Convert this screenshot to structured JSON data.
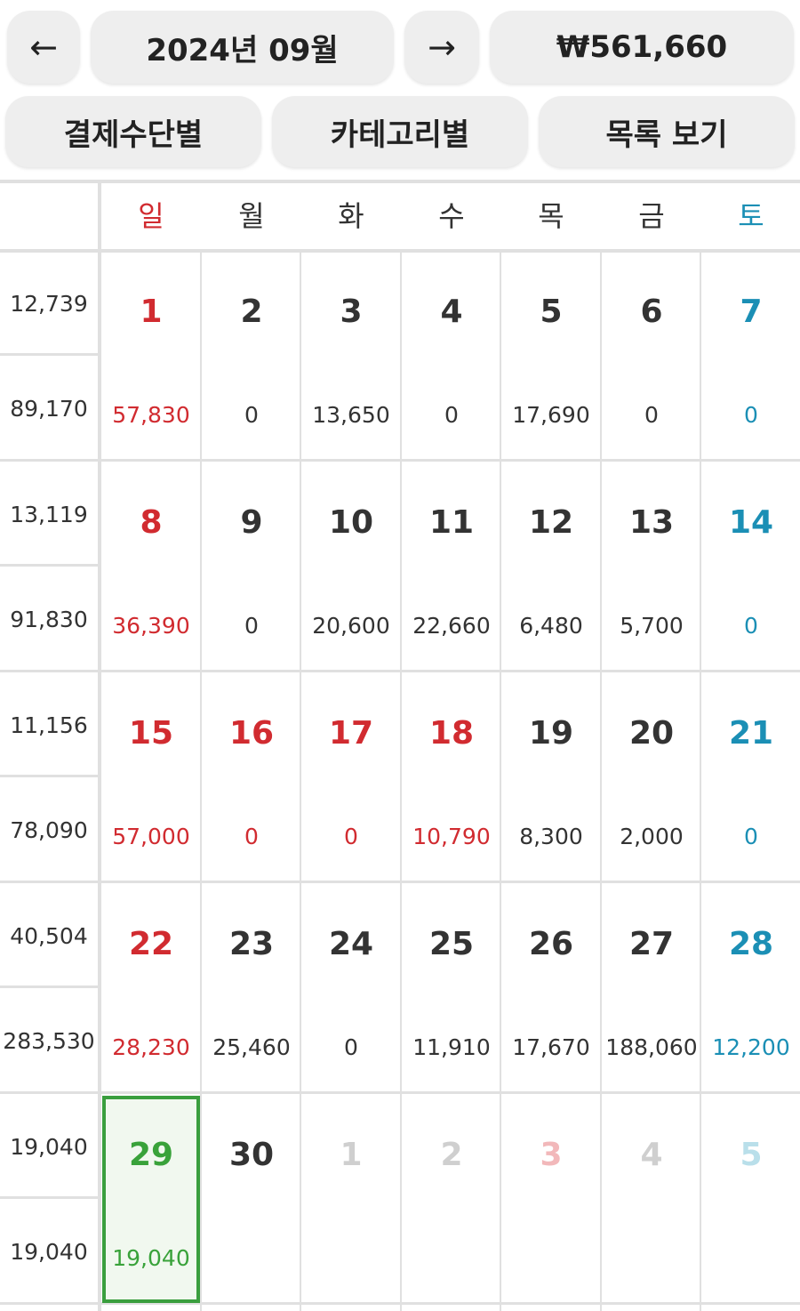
{
  "header": {
    "prev_label": "←",
    "month_label": "2024년 09월",
    "next_label": "→",
    "total_label": "₩561,660"
  },
  "view_buttons": {
    "by_payment": "결제수단별",
    "by_category": "카테고리별",
    "list_view": "목록 보기"
  },
  "weekdays": [
    "일",
    "월",
    "화",
    "수",
    "목",
    "금",
    "토"
  ],
  "weeks": [
    {
      "summary_top": "12,739",
      "summary_bottom": "89,170",
      "days": [
        {
          "day": "1",
          "amount": "57,830",
          "kind": "holiday"
        },
        {
          "day": "2",
          "amount": "0",
          "kind": "normal"
        },
        {
          "day": "3",
          "amount": "13,650",
          "kind": "normal"
        },
        {
          "day": "4",
          "amount": "0",
          "kind": "normal"
        },
        {
          "day": "5",
          "amount": "17,690",
          "kind": "normal"
        },
        {
          "day": "6",
          "amount": "0",
          "kind": "normal"
        },
        {
          "day": "7",
          "amount": "0",
          "kind": "saturday"
        }
      ]
    },
    {
      "summary_top": "13,119",
      "summary_bottom": "91,830",
      "days": [
        {
          "day": "8",
          "amount": "36,390",
          "kind": "holiday"
        },
        {
          "day": "9",
          "amount": "0",
          "kind": "normal"
        },
        {
          "day": "10",
          "amount": "20,600",
          "kind": "normal"
        },
        {
          "day": "11",
          "amount": "22,660",
          "kind": "normal"
        },
        {
          "day": "12",
          "amount": "6,480",
          "kind": "normal"
        },
        {
          "day": "13",
          "amount": "5,700",
          "kind": "normal"
        },
        {
          "day": "14",
          "amount": "0",
          "kind": "saturday"
        }
      ]
    },
    {
      "summary_top": "11,156",
      "summary_bottom": "78,090",
      "days": [
        {
          "day": "15",
          "amount": "57,000",
          "kind": "holiday"
        },
        {
          "day": "16",
          "amount": "0",
          "kind": "holiday"
        },
        {
          "day": "17",
          "amount": "0",
          "kind": "holiday"
        },
        {
          "day": "18",
          "amount": "10,790",
          "kind": "holiday"
        },
        {
          "day": "19",
          "amount": "8,300",
          "kind": "normal"
        },
        {
          "day": "20",
          "amount": "2,000",
          "kind": "normal"
        },
        {
          "day": "21",
          "amount": "0",
          "kind": "saturday"
        }
      ]
    },
    {
      "summary_top": "40,504",
      "summary_bottom": "283,530",
      "days": [
        {
          "day": "22",
          "amount": "28,230",
          "kind": "holiday"
        },
        {
          "day": "23",
          "amount": "25,460",
          "kind": "normal"
        },
        {
          "day": "24",
          "amount": "0",
          "kind": "normal"
        },
        {
          "day": "25",
          "amount": "11,910",
          "kind": "normal"
        },
        {
          "day": "26",
          "amount": "17,670",
          "kind": "normal"
        },
        {
          "day": "27",
          "amount": "188,060",
          "kind": "normal"
        },
        {
          "day": "28",
          "amount": "12,200",
          "kind": "saturday"
        }
      ]
    },
    {
      "summary_top": "19,040",
      "summary_bottom": "19,040",
      "days": [
        {
          "day": "29",
          "amount": "19,040",
          "kind": "today"
        },
        {
          "day": "30",
          "amount": "",
          "kind": "normal"
        },
        {
          "day": "1",
          "amount": "",
          "kind": "faded"
        },
        {
          "day": "2",
          "amount": "",
          "kind": "faded"
        },
        {
          "day": "3",
          "amount": "",
          "kind": "faded-holiday"
        },
        {
          "day": "4",
          "amount": "",
          "kind": "faded"
        },
        {
          "day": "5",
          "amount": "",
          "kind": "faded-saturday"
        }
      ]
    }
  ],
  "colors": {
    "holiday": "#d12b30",
    "saturday": "#1b8fb5",
    "today": "#39a23a",
    "today_border": "#3a9e3e",
    "faded": "#cfcfcf",
    "button_bg": "#eeeeee",
    "grid_line": "#e0e0e0"
  }
}
